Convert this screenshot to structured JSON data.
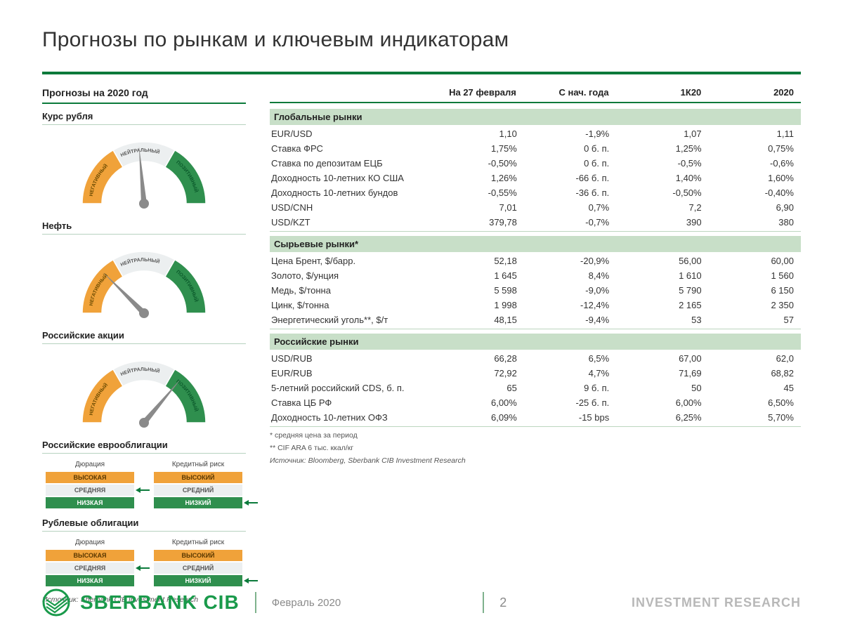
{
  "title": "Прогнозы по рынкам и ключевым индикаторам",
  "sidebar": {
    "header": "Прогнозы на 2020 год",
    "gauges": [
      {
        "label": "Курс рубля",
        "angle": -5
      },
      {
        "label": "Нефть",
        "angle": -45
      },
      {
        "label": "Российские акции",
        "angle": 40
      }
    ],
    "gauge_labels": {
      "neg": "НЕГАТИВНЫЙ",
      "neu": "НЕЙТРАЛЬНЫЙ",
      "pos": "ПОЗИТИВНЫЙ"
    },
    "gauge_colors": {
      "neg": "#f0a23a",
      "neu": "#eceff0",
      "pos": "#2f8f4e",
      "needle": "#8a8a8a"
    },
    "risk_blocks": [
      {
        "label": "Российские еврооблигации",
        "cols": [
          {
            "title": "Дюрация",
            "levels": [
              "ВЫСОКАЯ",
              "СРЕДНЯЯ",
              "НИЗКАЯ"
            ],
            "selected": 1
          },
          {
            "title": "Кредитный риск",
            "levels": [
              "ВЫСОКИЙ",
              "СРЕДНИЙ",
              "НИЗКИЙ"
            ],
            "selected": 2
          }
        ]
      },
      {
        "label": "Рублевые облигации",
        "cols": [
          {
            "title": "Дюрация",
            "levels": [
              "ВЫСОКАЯ",
              "СРЕДНЯЯ",
              "НИЗКАЯ"
            ],
            "selected": 1
          },
          {
            "title": "Кредитный риск",
            "levels": [
              "ВЫСОКИЙ",
              "СРЕДНИЙ",
              "НИЗКИЙ"
            ],
            "selected": 2
          }
        ]
      }
    ],
    "source": "Источник: Sberbank CIB Investment Research"
  },
  "table": {
    "columns": [
      "На 27 февраля",
      "С нач. года",
      "1К20",
      "2020"
    ],
    "sections": [
      {
        "title": "Глобальные рынки",
        "rows": [
          [
            "EUR/USD",
            "1,10",
            "-1,9%",
            "1,07",
            "1,11"
          ],
          [
            "Ставка ФРС",
            "1,75%",
            "0 б. п.",
            "1,25%",
            "0,75%"
          ],
          [
            "Ставка по депозитам ЕЦБ",
            "-0,50%",
            "0 б. п.",
            "-0,5%",
            "-0,6%"
          ],
          [
            "Доходность 10-летних КО США",
            "1,26%",
            "-66 б. п.",
            "1,40%",
            "1,60%"
          ],
          [
            "Доходность 10-летних бундов",
            "-0,55%",
            "-36 б. п.",
            "-0,50%",
            "-0,40%"
          ],
          [
            "USD/CNH",
            "7,01",
            "0,7%",
            "7,2",
            "6,90"
          ],
          [
            "USD/KZT",
            "379,78",
            "-0,7%",
            "390",
            "380"
          ]
        ]
      },
      {
        "title": "Сырьевые рынки*",
        "rows": [
          [
            "Цена Брент, $/барр.",
            "52,18",
            "-20,9%",
            "56,00",
            "60,00"
          ],
          [
            "Золото, $/унция",
            "1 645",
            "8,4%",
            "1 610",
            "1 560"
          ],
          [
            "Медь, $/тонна",
            "5 598",
            "-9,0%",
            "5 790",
            "6 150"
          ],
          [
            "Цинк, $/тонна",
            "1 998",
            "-12,4%",
            "2 165",
            "2 350"
          ],
          [
            "Энергетический уголь**, $/т",
            "48,15",
            "-9,4%",
            "53",
            "57"
          ]
        ]
      },
      {
        "title": "Российские рынки",
        "rows": [
          [
            "USD/RUB",
            "66,28",
            "6,5%",
            "67,00",
            "62,0"
          ],
          [
            "EUR/RUB",
            "72,92",
            "4,7%",
            "71,69",
            "68,82"
          ],
          [
            "5-летний российский CDS, б. п.",
            "65",
            "9 б. п.",
            "50",
            "45"
          ],
          [
            "Ставка ЦБ РФ",
            "6,00%",
            "-25 б. п.",
            "6,00%",
            "6,50%"
          ],
          [
            "Доходность 10-летних ОФЗ",
            "6,09%",
            "-15 bps",
            "6,25%",
            "5,70%"
          ]
        ]
      }
    ],
    "footnotes": [
      "* средняя цена за период",
      "** CIF ARA 6 тыс. ккал/кг",
      "Источник: Bloomberg, Sberbank CIB Investment Research"
    ]
  },
  "footer": {
    "brand": "SBERBANK CIB",
    "date": "Февраль 2020",
    "page": "2",
    "right": "INVESTMENT RESEARCH"
  },
  "colors": {
    "brand_green": "#0b7a3b",
    "band_green": "#c8dfc8",
    "logo_green": "#1a9a4b"
  }
}
